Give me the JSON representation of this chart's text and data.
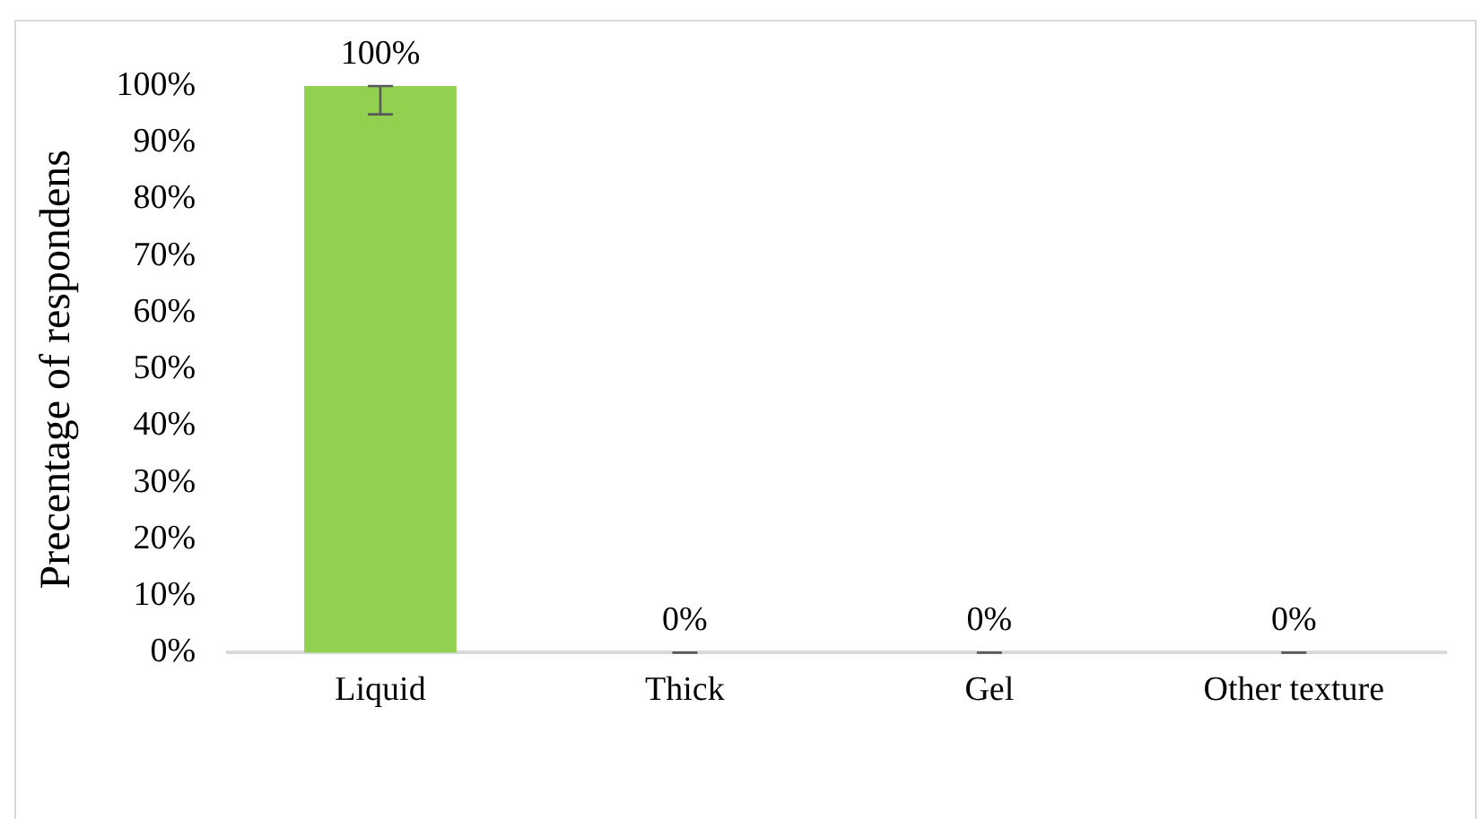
{
  "chart_data": {
    "type": "bar",
    "ylabel": "Precentage of respondens",
    "categories": [
      "Liquid",
      "Thick",
      "Gel",
      "Other texture"
    ],
    "values": [
      100,
      0,
      0,
      0
    ],
    "color": "#92d050",
    "errors": [
      [
        95,
        100
      ],
      0,
      0,
      0
    ],
    "value_labels": [
      "100%",
      "0%",
      "0%",
      "0%"
    ],
    "ylim": [
      0,
      100
    ],
    "yticks": [
      {
        "value": 0,
        "label": "0%"
      },
      {
        "value": 10,
        "label": "10%"
      },
      {
        "value": 20,
        "label": "20%"
      },
      {
        "value": 30,
        "label": "30%"
      },
      {
        "value": 40,
        "label": "40%"
      },
      {
        "value": 50,
        "label": "50%"
      },
      {
        "value": 60,
        "label": "60%"
      },
      {
        "value": 70,
        "label": "70%"
      },
      {
        "value": 80,
        "label": "80%"
      },
      {
        "value": 90,
        "label": "90%"
      },
      {
        "value": 100,
        "label": "100%"
      }
    ],
    "grid": false,
    "legend": false
  }
}
